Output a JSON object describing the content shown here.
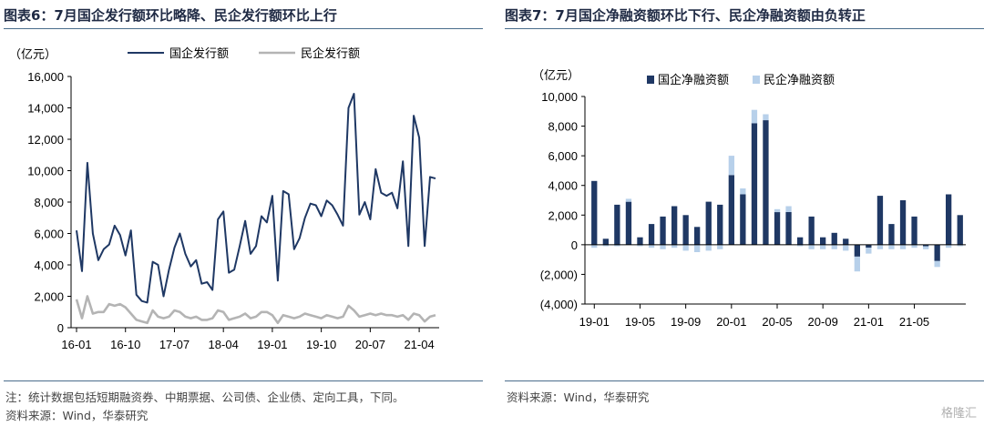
{
  "left": {
    "title": "图表6：7月国企发行额环比略降、民企发行额环比上行",
    "note1": "注：统计数据包括短期融资券、中期票据、公司债、企业债、定向工具，下同。",
    "note2": "资料来源：Wind，华泰研究"
  },
  "right": {
    "title": "图表7：7月国企净融资额环比下行、民企净融资额由负转正",
    "note1": "资料来源：Wind，华泰研究"
  },
  "watermark": "格隆汇",
  "colors": {
    "navy": "#1f3864",
    "gray": "#b4b4b4",
    "light_blue": "#b7d0ea"
  },
  "chart_data": [
    {
      "type": "line",
      "unit_label": "（亿元）",
      "ylim": [
        0,
        16000
      ],
      "yticks": [
        "0",
        "2,000",
        "4,000",
        "6,000",
        "8,000",
        "10,000",
        "12,000",
        "14,000",
        "16,000"
      ],
      "ytick_values": [
        0,
        2000,
        4000,
        6000,
        8000,
        10000,
        12000,
        14000,
        16000
      ],
      "xtick_labels": [
        "16-01",
        "16-10",
        "17-07",
        "18-04",
        "19-01",
        "19-10",
        "20-07",
        "21-04"
      ],
      "xtick_index": [
        0,
        9,
        18,
        27,
        36,
        45,
        54,
        63
      ],
      "legend_position": "top-center",
      "series": [
        {
          "name": "国企发行额",
          "color": "#1f3864",
          "values": [
            6200,
            3600,
            10500,
            6000,
            4300,
            5000,
            5300,
            6500,
            5900,
            4600,
            6200,
            2100,
            1700,
            1600,
            4200,
            4000,
            2000,
            3700,
            5100,
            6000,
            4700,
            3900,
            4300,
            2800,
            2900,
            2400,
            6900,
            7400,
            3500,
            3700,
            5200,
            6800,
            4700,
            5200,
            7100,
            6700,
            8400,
            3000,
            8700,
            8500,
            5000,
            5700,
            7000,
            7900,
            7800,
            7100,
            8100,
            7800,
            7200,
            6500,
            14000,
            14900,
            7200,
            8000,
            6900,
            10100,
            8600,
            8400,
            8600,
            7600,
            10600,
            5200,
            13500,
            12100,
            5200,
            9600,
            9500
          ]
        },
        {
          "name": "民企发行额",
          "color": "#b4b4b4",
          "values": [
            1800,
            600,
            2000,
            900,
            1000,
            1000,
            1500,
            1400,
            1500,
            1300,
            900,
            500,
            400,
            300,
            1100,
            700,
            600,
            700,
            1100,
            1000,
            700,
            600,
            700,
            500,
            500,
            600,
            1100,
            1000,
            500,
            600,
            700,
            900,
            600,
            700,
            1000,
            1000,
            800,
            300,
            800,
            700,
            600,
            700,
            900,
            800,
            700,
            600,
            800,
            700,
            600,
            700,
            1400,
            1100,
            700,
            800,
            900,
            800,
            900,
            800,
            800,
            700,
            800,
            500,
            900,
            800,
            400,
            700,
            800
          ]
        }
      ]
    },
    {
      "type": "bar",
      "stacked": true,
      "unit_label": "（亿元）",
      "ylim": [
        -4000,
        10000
      ],
      "yticks": [
        "(4,000)",
        "(2,000)",
        "0",
        "2,000",
        "4,000",
        "6,000",
        "8,000",
        "10,000"
      ],
      "ytick_values": [
        -4000,
        -2000,
        0,
        2000,
        4000,
        6000,
        8000,
        10000
      ],
      "xtick_labels": [
        "19-01",
        "19-05",
        "19-09",
        "20-01",
        "20-05",
        "20-09",
        "21-01",
        "21-05"
      ],
      "xtick_index": [
        0,
        4,
        8,
        12,
        16,
        20,
        24,
        28
      ],
      "legend_position": "top-center",
      "series": [
        {
          "name": "国企净融资额",
          "color": "#1f3864",
          "values": [
            4300,
            400,
            2700,
            2900,
            500,
            1400,
            1900,
            2600,
            2000,
            1200,
            2900,
            2700,
            4700,
            3400,
            8200,
            8400,
            2200,
            2200,
            500,
            1900,
            500,
            800,
            400,
            -800,
            -200,
            3300,
            1400,
            3000,
            1900,
            -100,
            -1100,
            3400,
            2000
          ]
        },
        {
          "name": "民企净融资额",
          "color": "#b7d0ea",
          "values": [
            -200,
            -100,
            -100,
            200,
            -100,
            -200,
            -300,
            -200,
            -400,
            -500,
            -400,
            -300,
            1300,
            400,
            900,
            400,
            200,
            400,
            -100,
            -300,
            -300,
            -300,
            -400,
            -1000,
            -400,
            -300,
            -300,
            -300,
            -200,
            -200,
            -400,
            -200,
            -100
          ]
        }
      ]
    }
  ]
}
